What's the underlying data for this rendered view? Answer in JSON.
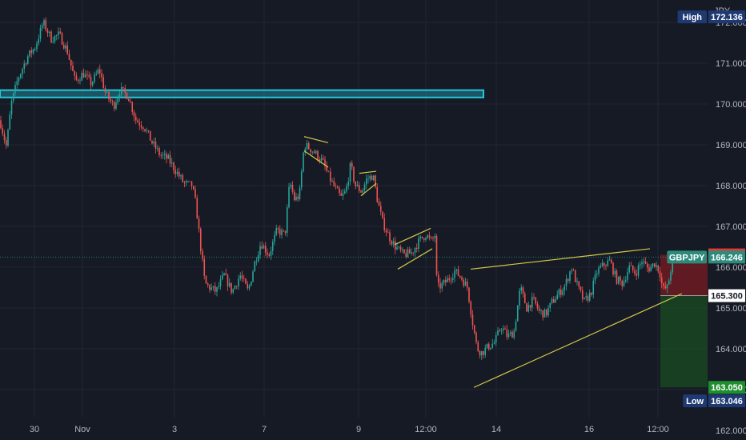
{
  "chart_data": {
    "type": "candlestick",
    "symbol": "GBPJPY",
    "currency": "JPY",
    "x_ticks": [
      "30",
      "Nov",
      "3",
      "7",
      "9",
      "12:00",
      "14",
      "16",
      "12:00"
    ],
    "y_ticks": [
      "162.000",
      "163.000",
      "164.000",
      "165.000",
      "166.000",
      "167.000",
      "168.000",
      "169.000",
      "170.000",
      "171.000",
      "172.000"
    ],
    "ylim": [
      161.76,
      172.55
    ],
    "high_label": "High",
    "high_value": "172.136",
    "low_label": "Low",
    "low_value": "163.046",
    "current_symbol_label": "GBPJPY",
    "current_price": "166.246",
    "stop_price": "166.300",
    "entry_price": "165.300",
    "target_price": "163.050",
    "resistance_zone": [
      170.2,
      170.3
    ],
    "price_path": [
      {
        "x": 0,
        "y": 169.6
      },
      {
        "x": 8,
        "y": 168.95
      },
      {
        "x": 14,
        "y": 170.0
      },
      {
        "x": 22,
        "y": 170.6
      },
      {
        "x": 34,
        "y": 171.15
      },
      {
        "x": 44,
        "y": 171.4
      },
      {
        "x": 54,
        "y": 172.0
      },
      {
        "x": 64,
        "y": 171.6
      },
      {
        "x": 74,
        "y": 171.7
      },
      {
        "x": 84,
        "y": 171.3
      },
      {
        "x": 94,
        "y": 170.55
      },
      {
        "x": 104,
        "y": 170.75
      },
      {
        "x": 114,
        "y": 170.5
      },
      {
        "x": 124,
        "y": 170.85
      },
      {
        "x": 132,
        "y": 170.25
      },
      {
        "x": 142,
        "y": 169.95
      },
      {
        "x": 150,
        "y": 170.35
      },
      {
        "x": 160,
        "y": 170.2
      },
      {
        "x": 170,
        "y": 169.6
      },
      {
        "x": 180,
        "y": 169.45
      },
      {
        "x": 190,
        "y": 169.05
      },
      {
        "x": 200,
        "y": 168.75
      },
      {
        "x": 210,
        "y": 168.65
      },
      {
        "x": 220,
        "y": 168.35
      },
      {
        "x": 230,
        "y": 168.05
      },
      {
        "x": 240,
        "y": 168.0
      },
      {
        "x": 245,
        "y": 167.5
      },
      {
        "x": 250,
        "y": 166.6
      },
      {
        "x": 256,
        "y": 165.6
      },
      {
        "x": 262,
        "y": 165.5
      },
      {
        "x": 270,
        "y": 165.4
      },
      {
        "x": 280,
        "y": 165.8
      },
      {
        "x": 290,
        "y": 165.4
      },
      {
        "x": 300,
        "y": 165.8
      },
      {
        "x": 310,
        "y": 165.4
      },
      {
        "x": 318,
        "y": 166.1
      },
      {
        "x": 326,
        "y": 166.6
      },
      {
        "x": 336,
        "y": 166.3
      },
      {
        "x": 346,
        "y": 166.9
      },
      {
        "x": 356,
        "y": 166.8
      },
      {
        "x": 362,
        "y": 168.1
      },
      {
        "x": 368,
        "y": 167.65
      },
      {
        "x": 374,
        "y": 167.75
      },
      {
        "x": 380,
        "y": 169.0
      },
      {
        "x": 388,
        "y": 168.9
      },
      {
        "x": 396,
        "y": 168.75
      },
      {
        "x": 404,
        "y": 168.55
      },
      {
        "x": 410,
        "y": 168.25
      },
      {
        "x": 418,
        "y": 167.95
      },
      {
        "x": 426,
        "y": 167.7
      },
      {
        "x": 432,
        "y": 167.85
      },
      {
        "x": 438,
        "y": 168.5
      },
      {
        "x": 444,
        "y": 168.0
      },
      {
        "x": 452,
        "y": 167.85
      },
      {
        "x": 458,
        "y": 168.15
      },
      {
        "x": 466,
        "y": 168.25
      },
      {
        "x": 472,
        "y": 167.6
      },
      {
        "x": 478,
        "y": 167.1
      },
      {
        "x": 486,
        "y": 166.75
      },
      {
        "x": 494,
        "y": 166.5
      },
      {
        "x": 504,
        "y": 166.3
      },
      {
        "x": 514,
        "y": 166.35
      },
      {
        "x": 524,
        "y": 166.65
      },
      {
        "x": 532,
        "y": 166.8
      },
      {
        "x": 540,
        "y": 166.6
      },
      {
        "x": 543,
        "y": 166.9
      },
      {
        "x": 546,
        "y": 165.5
      },
      {
        "x": 552,
        "y": 165.55
      },
      {
        "x": 560,
        "y": 165.7
      },
      {
        "x": 568,
        "y": 165.9
      },
      {
        "x": 576,
        "y": 165.75
      },
      {
        "x": 584,
        "y": 165.5
      },
      {
        "x": 590,
        "y": 164.7
      },
      {
        "x": 596,
        "y": 164.0
      },
      {
        "x": 602,
        "y": 163.9
      },
      {
        "x": 610,
        "y": 164.05
      },
      {
        "x": 618,
        "y": 164.15
      },
      {
        "x": 626,
        "y": 164.55
      },
      {
        "x": 634,
        "y": 164.3
      },
      {
        "x": 642,
        "y": 164.4
      },
      {
        "x": 650,
        "y": 165.5
      },
      {
        "x": 658,
        "y": 165.0
      },
      {
        "x": 666,
        "y": 165.2
      },
      {
        "x": 674,
        "y": 164.9
      },
      {
        "x": 682,
        "y": 164.85
      },
      {
        "x": 690,
        "y": 165.15
      },
      {
        "x": 698,
        "y": 165.35
      },
      {
        "x": 706,
        "y": 165.55
      },
      {
        "x": 714,
        "y": 166.0
      },
      {
        "x": 722,
        "y": 165.5
      },
      {
        "x": 730,
        "y": 165.15
      },
      {
        "x": 738,
        "y": 165.35
      },
      {
        "x": 746,
        "y": 165.9
      },
      {
        "x": 754,
        "y": 166.05
      },
      {
        "x": 762,
        "y": 166.15
      },
      {
        "x": 770,
        "y": 165.7
      },
      {
        "x": 778,
        "y": 165.6
      },
      {
        "x": 786,
        "y": 166.0
      },
      {
        "x": 794,
        "y": 165.85
      },
      {
        "x": 802,
        "y": 166.15
      },
      {
        "x": 810,
        "y": 165.95
      },
      {
        "x": 818,
        "y": 166.1
      },
      {
        "x": 824,
        "y": 165.9
      },
      {
        "x": 828,
        "y": 165.45
      },
      {
        "x": 834,
        "y": 165.5
      },
      {
        "x": 840,
        "y": 166.15
      },
      {
        "x": 844,
        "y": 166.25
      }
    ],
    "trendlines": [
      {
        "x1": 380,
        "y1": 169.2,
        "x2": 410,
        "y2": 169.05
      },
      {
        "x1": 380,
        "y1": 168.85,
        "x2": 410,
        "y2": 168.45
      },
      {
        "x1": 449,
        "y1": 168.3,
        "x2": 470,
        "y2": 168.35
      },
      {
        "x1": 451,
        "y1": 167.75,
        "x2": 470,
        "y2": 168.05
      },
      {
        "x1": 493,
        "y1": 166.55,
        "x2": 538,
        "y2": 166.95
      },
      {
        "x1": 497,
        "y1": 165.95,
        "x2": 540,
        "y2": 166.45
      },
      {
        "x1": 588,
        "y1": 165.95,
        "x2": 812,
        "y2": 166.45
      },
      {
        "x1": 592,
        "y1": 163.05,
        "x2": 852,
        "y2": 165.35
      }
    ],
    "position": {
      "x1": 825,
      "x2": 884
    },
    "colors": {
      "background": "#161a25",
      "grid": "#222633",
      "up_candle": "#26a69a",
      "down_candle": "#ef5350",
      "resistance_zone": "#26c6da",
      "trendline": "#d4c94a",
      "stop_label": "#e53935",
      "target_label": "#1e8e2e",
      "symbol_label": "#2e8b7c",
      "high_low_label": "#1f3a73",
      "axis_text": "#b2b5be"
    }
  }
}
